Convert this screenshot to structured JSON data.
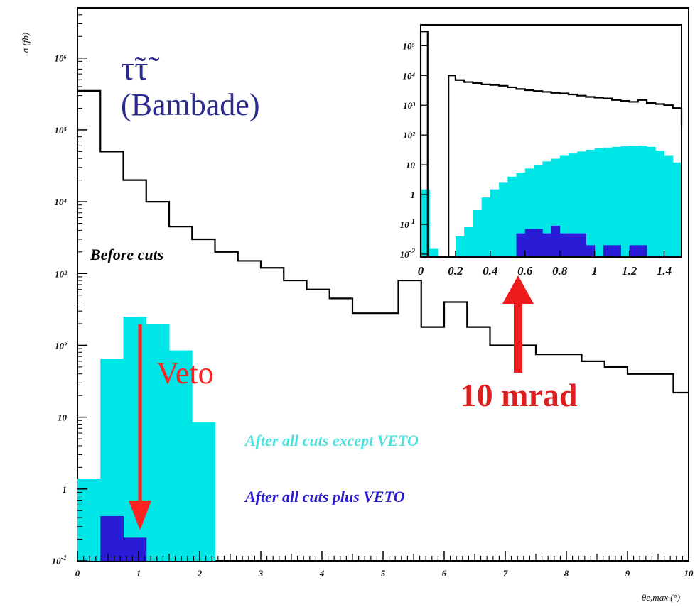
{
  "chart_data": [
    {
      "type": "histogram",
      "title": "τ̃τ̃",
      "subtitle": "(Bambade)",
      "ylabel": "σ (fb)",
      "xlabel": "θe,max (°)",
      "x_ticks": [
        "0",
        "1",
        "2",
        "3",
        "4",
        "5",
        "6",
        "7",
        "8",
        "9",
        "10"
      ],
      "y_ticks": [
        "10-1",
        "1",
        "10",
        "10²",
        "10³",
        "10⁴",
        "10⁵",
        "10⁶"
      ],
      "xlim": [
        0,
        10
      ],
      "ylim": [
        0.1,
        5000000
      ],
      "log_y": true,
      "bin_width": 0.375,
      "series": [
        {
          "name": "Before cuts",
          "style": "step",
          "color": "#000000",
          "bin_starts": [
            0,
            0.375,
            0.75,
            1.125,
            1.5,
            1.875,
            2.25,
            2.625,
            3.0,
            3.375,
            3.75,
            4.125,
            4.5,
            4.875,
            5.25,
            5.625,
            6.0,
            6.375,
            6.75,
            7.125,
            7.5,
            7.875,
            8.25,
            8.625,
            9.0,
            9.375,
            9.75
          ],
          "values": [
            350000,
            50000,
            20000,
            10000,
            4500,
            3000,
            2000,
            1500,
            1200,
            800,
            600,
            450,
            280,
            280,
            800,
            180,
            400,
            180,
            100,
            100,
            75,
            75,
            60,
            50,
            40,
            40,
            22
          ]
        },
        {
          "name": "After all cuts except VETO",
          "style": "filled",
          "color": "#00e5e5",
          "bin_starts": [
            0,
            0.375,
            0.75,
            1.125,
            1.5,
            1.875,
            2.25
          ],
          "values": [
            1.4,
            65,
            250,
            200,
            85,
            8.5,
            0
          ]
        },
        {
          "name": "After all cuts plus VETO",
          "style": "filled",
          "color": "#2a1bd6",
          "bin_starts": [
            0,
            0.375,
            0.75,
            1.125
          ],
          "values": [
            0,
            0.42,
            0.21,
            0
          ]
        }
      ],
      "annotations": [
        "Before cuts",
        "After all cuts except VETO",
        "After all cuts plus VETO",
        "Veto"
      ]
    },
    {
      "type": "histogram",
      "inset": true,
      "log_y": true,
      "xlim": [
        0,
        1.5
      ],
      "ylim": [
        0.008,
        500000
      ],
      "x_ticks": [
        "0",
        "0.2",
        "0.4",
        "0.6",
        "0.8",
        "1",
        "1.2",
        "1.4"
      ],
      "y_ticks": [
        "10-2",
        "10-1",
        "1",
        "10",
        "10²",
        "10³",
        "10⁴",
        "10⁵"
      ],
      "bin_width": 0.05,
      "series": [
        {
          "name": "Before cuts",
          "style": "step",
          "color": "#000000",
          "x": [
            0,
            0.04,
            0.04,
            0.16,
            0.16,
            0.2,
            0.2,
            0.25,
            0.3,
            0.35,
            0.4,
            0.45,
            0.5,
            0.55,
            0.6,
            0.65,
            0.7,
            0.75,
            0.8,
            0.85,
            0.9,
            0.95,
            1.0,
            1.05,
            1.1,
            1.15,
            1.2,
            1.25,
            1.3,
            1.35,
            1.4,
            1.45,
            1.5
          ],
          "values": [
            300000,
            300000,
            0.008,
            0.008,
            10000,
            10000,
            7000,
            6000,
            5500,
            5000,
            4800,
            4500,
            4000,
            3500,
            3200,
            3000,
            2800,
            2600,
            2500,
            2300,
            2100,
            1900,
            1800,
            1700,
            1500,
            1400,
            1300,
            1500,
            1200,
            1100,
            1000,
            800,
            200
          ]
        },
        {
          "name": "After all cuts except VETO",
          "style": "filled",
          "color": "#00e5e5",
          "bin_starts": [
            0,
            0.05,
            0.1,
            0.15,
            0.2,
            0.25,
            0.3,
            0.35,
            0.4,
            0.45,
            0.5,
            0.55,
            0.6,
            0.65,
            0.7,
            0.75,
            0.8,
            0.85,
            0.9,
            0.95,
            1.0,
            1.05,
            1.1,
            1.15,
            1.2,
            1.25,
            1.3,
            1.35,
            1.4,
            1.45
          ],
          "values": [
            1.5,
            0.015,
            0,
            0,
            0.04,
            0.08,
            0.3,
            0.8,
            1.5,
            2.5,
            4,
            5.5,
            7.5,
            10,
            13,
            16,
            20,
            24,
            28,
            32,
            36,
            38,
            40,
            42,
            43,
            44,
            40,
            30,
            20,
            12
          ]
        },
        {
          "name": "After all cuts plus VETO",
          "style": "filled",
          "color": "#2a1bd6",
          "bin_starts": [
            0.55,
            0.6,
            0.65,
            0.7,
            0.75,
            0.8,
            0.85,
            0.9,
            0.95,
            1.05,
            1.1,
            1.2,
            1.25
          ],
          "values": [
            0.05,
            0.07,
            0.07,
            0.05,
            0.09,
            0.05,
            0.05,
            0.05,
            0.02,
            0.02,
            0.02,
            0.02,
            0.02
          ]
        }
      ]
    }
  ],
  "callouts": {
    "inset_arrow_label": "10 mrad"
  }
}
